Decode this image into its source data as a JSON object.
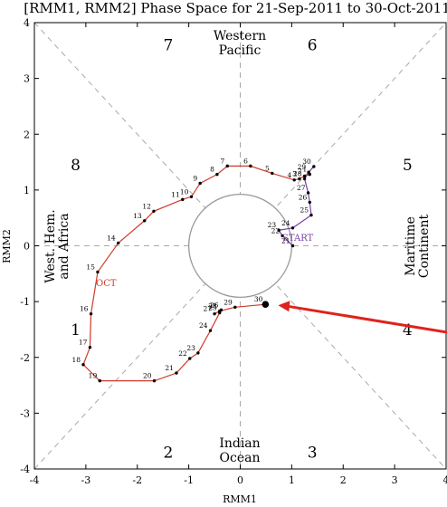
{
  "chart_data": {
    "type": "line",
    "title": "[RMM1, RMM2] Phase Space for 21-Sep-2011 to 30-Oct-2011",
    "xlabel": "RMM1",
    "ylabel": "RMM2",
    "xlim": [
      -4,
      4
    ],
    "ylim": [
      -4,
      4
    ],
    "xticks": [
      "-4",
      "-3",
      "-2",
      "-1",
      "0",
      "1",
      "2",
      "3",
      "4"
    ],
    "yticks": [
      "-4",
      "-3",
      "-2",
      "-1",
      "0",
      "1",
      "2",
      "3",
      "4"
    ],
    "phases": [
      "1",
      "2",
      "3",
      "4",
      "5",
      "6",
      "7",
      "8"
    ],
    "regions": {
      "top": [
        "Western",
        "Pacific"
      ],
      "bottom": [
        "Indian",
        "Ocean"
      ],
      "left": [
        "West. Hem.",
        "and Africa"
      ],
      "right": [
        "Maritime",
        "Continent"
      ]
    },
    "annotations": {
      "start_label": "START",
      "month_label": "OCT",
      "start_color": "#7a3fa8",
      "oct_color": "#d03a2a",
      "arrow_color": "#e0221c"
    },
    "series": [
      {
        "color": "#7a3fa8",
        "labels": [
          "21",
          "22",
          "23",
          "24",
          "25",
          "26",
          "27",
          "28",
          "29",
          "30"
        ],
        "x": [
          1.02,
          0.82,
          0.75,
          1.02,
          1.38,
          1.35,
          1.32,
          1.25,
          1.33,
          1.43
        ],
        "y": [
          0.0,
          0.18,
          0.28,
          0.32,
          0.55,
          0.78,
          0.95,
          1.2,
          1.32,
          1.42
        ]
      },
      {
        "color": "#d03a2a",
        "labels": [
          "1",
          "2",
          "3",
          "4",
          "5",
          "6",
          "7",
          "8",
          "9",
          "10",
          "11",
          "12",
          "13",
          "14",
          "15",
          "16",
          "17",
          "18",
          "19",
          "20",
          "21",
          "22",
          "23",
          "24",
          "25",
          "26",
          "27",
          "28",
          "29",
          "30"
        ],
        "x": [
          1.35,
          1.25,
          1.15,
          1.05,
          0.62,
          0.2,
          -0.25,
          -0.45,
          -0.78,
          -0.95,
          -1.12,
          -1.68,
          -1.86,
          -2.37,
          -2.77,
          -2.9,
          -2.92,
          -3.05,
          -2.73,
          -1.67,
          -1.24,
          -0.98,
          -0.82,
          -0.58,
          -0.4,
          -0.37,
          -0.5,
          -0.4,
          -0.1,
          0.49
        ],
        "y": [
          1.28,
          1.25,
          1.2,
          1.18,
          1.3,
          1.43,
          1.43,
          1.28,
          1.12,
          0.88,
          0.83,
          0.62,
          0.45,
          0.05,
          -0.47,
          -1.22,
          -1.82,
          -2.13,
          -2.42,
          -2.42,
          -2.28,
          -2.02,
          -1.92,
          -1.52,
          -1.2,
          -1.15,
          -1.22,
          -1.17,
          -1.1,
          -1.05
        ]
      }
    ],
    "highlight_point": {
      "x": 0.49,
      "y": -1.05
    }
  }
}
